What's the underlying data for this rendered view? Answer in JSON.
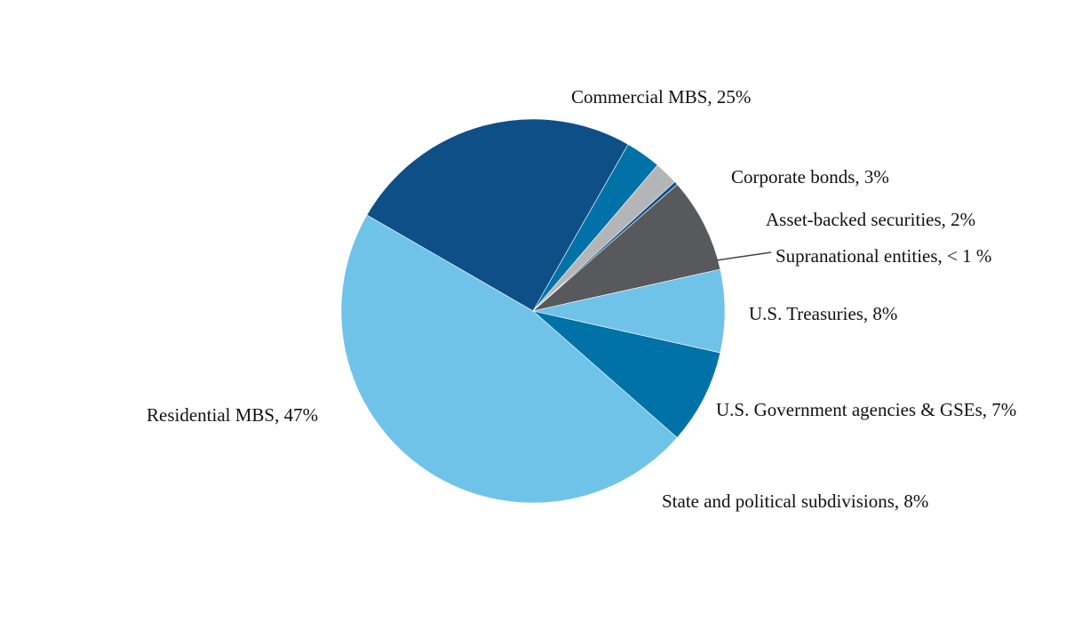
{
  "chart_data": {
    "type": "pie",
    "title": "",
    "start": "Residential MBS slice ends at top-left, slices proceed clockwise from Commercial MBS",
    "slices": [
      {
        "name": "Commercial MBS",
        "label": "Commercial MBS, 25%",
        "value": 25,
        "color": "#0f4f87"
      },
      {
        "name": "Corporate bonds",
        "label": "Corporate bonds, 3%",
        "value": 3,
        "color": "#0072a8"
      },
      {
        "name": "Asset-backed securities",
        "label": "Asset-backed securities, 2%",
        "value": 2,
        "color": "#b3b5b7"
      },
      {
        "name": "Supranational entities",
        "label": "Supranational entities, < 1 %",
        "value": 0.3,
        "color": "#0f4f87"
      },
      {
        "name": "U.S. Treasuries",
        "label": "U.S. Treasuries, 8%",
        "value": 8,
        "color": "#57595c"
      },
      {
        "name": "U.S. Government agencies & GSEs",
        "label": "U.S. Government agencies & GSEs, 7%",
        "value": 7,
        "color": "#70c3e8"
      },
      {
        "name": "State and political subdivisions",
        "label": "State and political subdivisions, 8%",
        "value": 8,
        "color": "#0072a8"
      },
      {
        "name": "Residential MBS",
        "label": "Residential MBS, 47%",
        "value": 47,
        "color": "#70c3e8"
      }
    ]
  }
}
